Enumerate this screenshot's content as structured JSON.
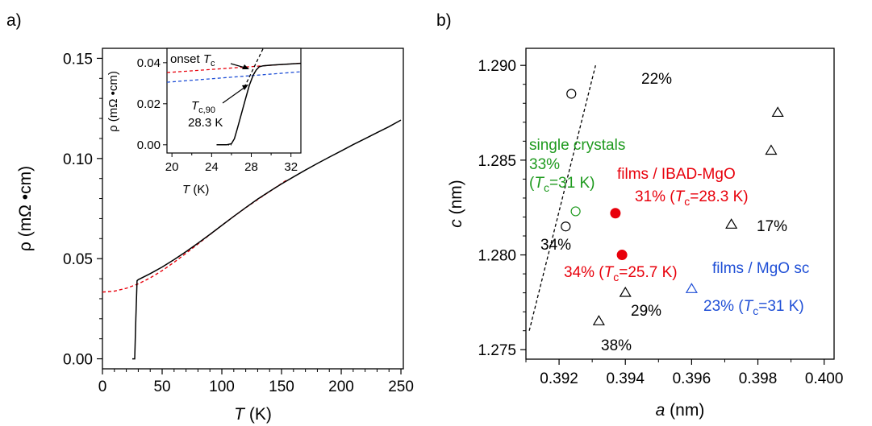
{
  "chart_data": [
    {
      "panel_label": "a)",
      "type": "line",
      "xlabel": {
        "var": "T",
        "unit": "(K)"
      },
      "ylabel": "ρ (mΩ •cm)",
      "xlim": [
        0,
        252
      ],
      "ylim": [
        -0.005,
        0.155
      ],
      "xticks": [
        "0",
        "50",
        "100",
        "150",
        "200",
        "250"
      ],
      "yticks": [
        "0.00",
        "0.05",
        "0.10",
        "0.15"
      ],
      "grid": false,
      "series": [
        {
          "style": "solid",
          "color": "#000000",
          "x": [
            25,
            27,
            28,
            29,
            30,
            40,
            50,
            60,
            70,
            80,
            90,
            100,
            110,
            120,
            130,
            140,
            150,
            160,
            170,
            180,
            190,
            200,
            210,
            220,
            230,
            240,
            250
          ],
          "y": [
            0.0,
            0.0,
            0.02,
            0.039,
            0.0395,
            0.0425,
            0.0458,
            0.0495,
            0.0535,
            0.0577,
            0.0621,
            0.0666,
            0.0711,
            0.0755,
            0.0797,
            0.0836,
            0.0873,
            0.0908,
            0.0942,
            0.0975,
            0.1007,
            0.1038,
            0.1069,
            0.1099,
            0.1129,
            0.1159,
            0.1192
          ]
        },
        {
          "style": "dashed",
          "color": "#e8000b",
          "x": [
            0,
            10,
            20,
            30,
            40,
            50,
            60,
            70,
            80,
            90,
            100,
            110,
            120,
            130,
            140,
            150,
            155
          ],
          "y": [
            0.0333,
            0.0338,
            0.0352,
            0.0374,
            0.0404,
            0.044,
            0.0482,
            0.0527,
            0.0573,
            0.062,
            0.0666,
            0.0711,
            0.0754,
            0.0795,
            0.0835,
            0.0875,
            0.0895
          ]
        }
      ],
      "inset": {
        "xlabel": {
          "var": "T",
          "unit": "(K)"
        },
        "ylabel": "ρ (mΩ •cm)",
        "xlim": [
          19.5,
          33
        ],
        "ylim": [
          -0.004,
          0.047
        ],
        "xticks": [
          "20",
          "24",
          "28",
          "32"
        ],
        "yticks": [
          "0.00",
          "0.02",
          "0.04"
        ],
        "series": [
          {
            "style": "solid",
            "color": "#000000",
            "x": [
              24.5,
              25.5,
              26.0,
              26.3,
              26.6,
              27.0,
              27.4,
              27.8,
              28.2,
              28.5,
              28.8,
              29.2,
              30,
              31,
              32,
              33
            ],
            "y": [
              0.0,
              0.0,
              0.0005,
              0.003,
              0.008,
              0.015,
              0.022,
              0.029,
              0.034,
              0.0365,
              0.038,
              0.0385,
              0.0388,
              0.0391,
              0.0394,
              0.0397
            ]
          },
          {
            "style": "dashed",
            "color": "#e8000b",
            "x": [
              19.5,
              33
            ],
            "y": [
              0.0352,
              0.0398
            ]
          },
          {
            "style": "dashed",
            "color": "#1f4fd6",
            "x": [
              19.5,
              33
            ],
            "y": [
              0.0305,
              0.0356
            ]
          },
          {
            "style": "dashed",
            "color": "#000000",
            "x": [
              27.3,
              29.2
            ],
            "y": [
              0.028,
              0.047
            ]
          }
        ],
        "annotations": {
          "onset": {
            "text": "onset ",
            "var": "T",
            "sub": "c"
          },
          "tc90": {
            "var": "T",
            "sub": "c,90",
            "value": "28.3 K"
          }
        }
      }
    },
    {
      "panel_label": "b)",
      "type": "scatter",
      "xlabel": {
        "var": "a",
        "unit": "(nm)"
      },
      "ylabel": {
        "var": "c",
        "unit": "(nm)"
      },
      "xlim": [
        0.391,
        0.4003
      ],
      "ylim": [
        1.2745,
        1.2909
      ],
      "xticks": [
        "0.392",
        "0.394",
        "0.396",
        "0.398",
        "0.400"
      ],
      "yticks": [
        "1.275",
        "1.280",
        "1.285",
        "1.290"
      ],
      "grid": false,
      "colors": {
        "black": "#000000",
        "green": "#1e9a1e",
        "red": "#e8000b",
        "blue": "#1f4fd6"
      },
      "trend_line": {
        "style": "dashed",
        "x": [
          0.3911,
          0.3931
        ],
        "y": [
          1.276,
          1.29
        ]
      },
      "series": [
        {
          "marker": "open-circle",
          "color": "#000000",
          "x": [
            0.3922,
            0.39237
          ],
          "y": [
            1.2815,
            1.2885
          ]
        },
        {
          "marker": "open-circle",
          "color": "#1e9a1e",
          "x": [
            0.3925
          ],
          "y": [
            1.2823
          ]
        },
        {
          "marker": "filled-circle",
          "color": "#e8000b",
          "x": [
            0.3937,
            0.3939
          ],
          "y": [
            1.2822,
            1.28
          ]
        },
        {
          "marker": "open-triangle",
          "color": "#000000",
          "x": [
            0.3932,
            0.394,
            0.3972,
            0.3984,
            0.3986
          ],
          "y": [
            1.2765,
            1.278,
            1.2816,
            1.2855,
            1.2875
          ]
        },
        {
          "marker": "open-triangle",
          "color": "#1f4fd6",
          "x": [
            0.396
          ],
          "y": [
            1.2782
          ]
        }
      ],
      "labels": {
        "p22": "22%",
        "p34": "34%",
        "p29": "29%",
        "p38": "38%",
        "p17": "17%",
        "single_crystals": "single crystals",
        "sc_pct": "33%",
        "sc_tc": {
          "open": "(",
          "var": "T",
          "sub": "c",
          "rest": "=31 K)"
        },
        "ibad": "films / IBAD-MgO",
        "ibad31": {
          "pre": "31% (",
          "var": "T",
          "sub": "c",
          "rest": "=28.3 K)"
        },
        "ibad34": {
          "pre": "34% (",
          "var": "T",
          "sub": "c",
          "rest": "=25.7 K)"
        },
        "mgosc": "films / MgO sc",
        "mgo23": {
          "pre": "23% (",
          "var": "T",
          "sub": "c",
          "rest": "=31 K)"
        }
      }
    }
  ]
}
